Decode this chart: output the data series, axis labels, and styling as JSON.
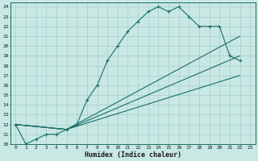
{
  "xlabel": "Humidex (Indice chaleur)",
  "bg_color": "#c8e8e4",
  "line_color": "#1a6e6a",
  "grid_color": "#a8cccc",
  "xlim_min": -0.5,
  "xlim_max": 23.5,
  "ylim_min": 10,
  "ylim_max": 24.4,
  "xticks": [
    0,
    1,
    2,
    3,
    4,
    5,
    6,
    7,
    8,
    9,
    10,
    11,
    12,
    13,
    14,
    15,
    16,
    17,
    18,
    19,
    20,
    21,
    22,
    23
  ],
  "yticks": [
    10,
    11,
    12,
    13,
    14,
    15,
    16,
    17,
    18,
    19,
    20,
    21,
    22,
    23,
    24
  ],
  "line1_x": [
    0,
    1,
    2,
    3,
    4,
    5,
    6,
    7,
    8,
    9,
    10,
    11,
    12,
    13,
    14,
    15,
    16,
    17,
    18,
    19,
    20,
    21,
    22
  ],
  "line1_y": [
    12,
    10,
    10.5,
    11,
    11,
    11.5,
    12,
    14.5,
    16,
    18.5,
    20,
    21.5,
    22.5,
    23.5,
    24,
    23.5,
    24,
    23,
    22,
    22,
    22,
    19,
    18.5
  ],
  "line2_x": [
    0,
    5,
    22
  ],
  "line2_y": [
    12,
    11.5,
    21
  ],
  "line3_x": [
    0,
    5,
    22
  ],
  "line3_y": [
    12,
    11.5,
    19
  ],
  "line4_x": [
    0,
    5,
    22
  ],
  "line4_y": [
    12,
    11.5,
    17
  ]
}
